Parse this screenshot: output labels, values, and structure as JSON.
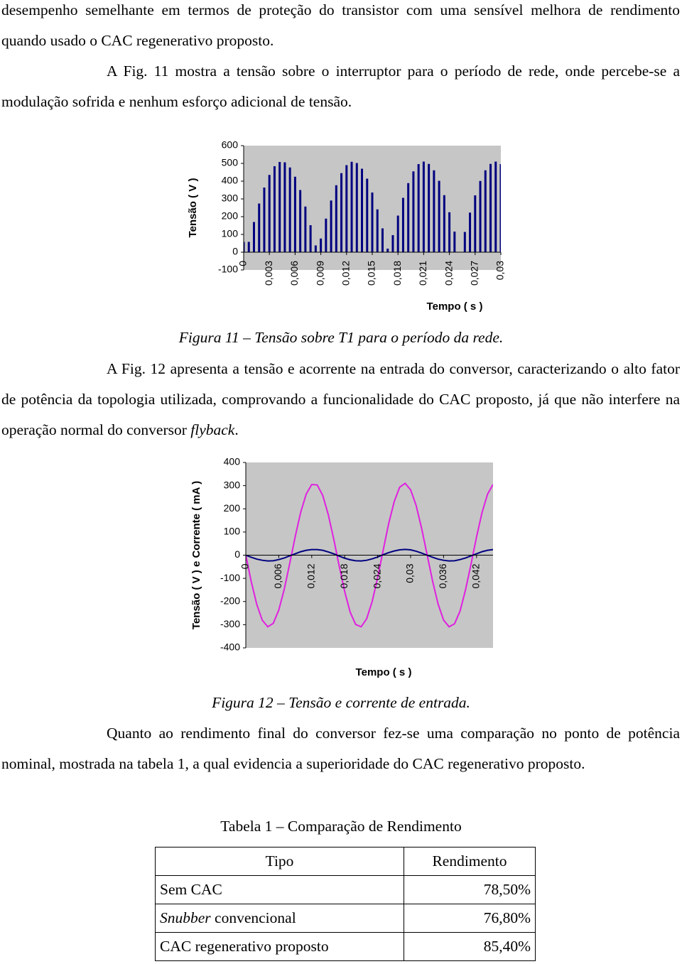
{
  "paragraph_1": "desempenho semelhante em termos de proteção do transistor com uma sensível melhora de rendimento quando usado o CAC regenerativo proposto.",
  "paragraph_2": "A Fig. 11 mostra a tensão sobre o interruptor para o período de rede, onde percebe-se a modulação sofrida e nenhum esforço adicional de tensão.",
  "figure_11": {
    "chart_data": {
      "type": "bar",
      "x_label": "Tempo ( s )",
      "y_label": "Tensão ( V )",
      "color": "#000080",
      "x": [
        0,
        0.0006,
        0.0012,
        0.0018,
        0.0024,
        0.003,
        0.0036,
        0.0042,
        0.0048,
        0.0054,
        0.006,
        0.0066,
        0.0072,
        0.0078,
        0.0084,
        0.009,
        0.0096,
        0.0102,
        0.0108,
        0.0114,
        0.012,
        0.0126,
        0.0132,
        0.0138,
        0.0144,
        0.015,
        0.0156,
        0.0162,
        0.0168,
        0.0174,
        0.018,
        0.0186,
        0.0192,
        0.0198,
        0.0204,
        0.021,
        0.0216,
        0.0222,
        0.0228,
        0.0234,
        0.024,
        0.0246,
        0.0252,
        0.0258,
        0.0264,
        0.027,
        0.0276,
        0.0282,
        0.0288,
        0.0294,
        0.03
      ],
      "values": [
        58,
        58,
        170,
        274,
        364,
        435,
        484,
        508,
        506,
        477,
        425,
        350,
        257,
        152,
        38,
        77,
        189,
        291,
        377,
        445,
        490,
        509,
        502,
        470,
        414,
        336,
        241,
        134,
        20,
        96,
        206,
        306,
        389,
        455,
        496,
        510,
        497,
        461,
        402,
        321,
        225,
        116,
        1,
        114,
        223,
        320,
        401,
        461,
        497,
        510,
        496
      ],
      "xlim": [
        0,
        0.03
      ],
      "xticks": [
        0,
        {
          "value": 0.003,
          "label": "0,003"
        },
        {
          "value": 0.006,
          "label": "0,006"
        },
        {
          "value": 0.009,
          "label": "0,009"
        },
        {
          "value": 0.012,
          "label": "0,012"
        },
        {
          "value": 0.015,
          "label": "0,015"
        },
        {
          "value": 0.018,
          "label": "0,018"
        },
        {
          "value": 0.021,
          "label": "0,021"
        },
        {
          "value": 0.024,
          "label": "0,024"
        },
        {
          "value": 0.027,
          "label": "0,027"
        },
        {
          "value": 0.03,
          "label": "0,03"
        }
      ],
      "ylim": [
        -100,
        600
      ],
      "yticks": [
        600,
        500,
        400,
        300,
        200,
        100,
        0,
        -100
      ]
    },
    "caption": "Figura 11 – Tensão sobre T1 para o período da rede."
  },
  "paragraph_3": {
    "text": "A Fig. 12 apresenta a tensão e acorrente na entrada do conversor, caracterizando o alto fator de potência da topologia utilizada, comprovando a funcionalidade do CAC proposto, já que não interfere na operação normal do conversor",
    "italic": "flyback",
    "end": "."
  },
  "figure_12": {
    "chart_data": {
      "type": "line",
      "x_label": "Tempo ( s )",
      "y_label": "Tensão ( V ) e Corrente ( mA )",
      "x": [
        0,
        0.001,
        0.002,
        0.003,
        0.004,
        0.005,
        0.006,
        0.007,
        0.008,
        0.009,
        0.01,
        0.011,
        0.012,
        0.013,
        0.014,
        0.015,
        0.016,
        0.017,
        0.018,
        0.019,
        0.02,
        0.021,
        0.022,
        0.023,
        0.024,
        0.025,
        0.026,
        0.027,
        0.028,
        0.029,
        0.03,
        0.031,
        0.032,
        0.033,
        0.034,
        0.035,
        0.036,
        0.037,
        0.038,
        0.039,
        0.04,
        0.041,
        0.042,
        0.043,
        0.044,
        0.045
      ],
      "series": [
        {
          "color": "#e020e0",
          "values": [
            0,
            -115,
            -213,
            -281,
            -309,
            -294,
            -237,
            -147,
            -35,
            81,
            186,
            264,
            305,
            303,
            258,
            176,
            70,
            -47,
            -157,
            -246,
            -299,
            -309,
            -274,
            -200,
            -97,
            21,
            136,
            230,
            293,
            310,
            282,
            215,
            116,
            2,
            -112,
            -211,
            -280,
            -309,
            -296,
            -241,
            -149,
            -38,
            79,
            184,
            263,
            305
          ]
        },
        {
          "color": "#000080",
          "values": [
            0,
            -9,
            -17,
            -22,
            -25,
            -24,
            -19,
            -12,
            -3,
            6,
            15,
            21,
            24,
            24,
            21,
            14,
            6,
            -4,
            -13,
            -20,
            -24,
            -25,
            -22,
            -16,
            -8,
            2,
            11,
            18,
            23,
            25,
            23,
            17,
            9,
            0,
            -9,
            -17,
            -22,
            -25,
            -24,
            -19,
            -12,
            -3,
            6,
            15,
            21,
            24
          ]
        }
      ],
      "xlim": [
        0,
        0.045
      ],
      "xticks": [
        0,
        {
          "value": 0.006,
          "label": "0,006"
        },
        {
          "value": 0.012,
          "label": "0,012"
        },
        {
          "value": 0.018,
          "label": "0,018"
        },
        {
          "value": 0.024,
          "label": "0,024"
        },
        {
          "value": 0.03,
          "label": "0,03"
        },
        {
          "value": 0.036,
          "label": "0,036"
        },
        {
          "value": 0.042,
          "label": "0,042"
        }
      ],
      "ylim": [
        -400,
        400
      ],
      "yticks": [
        400,
        300,
        200,
        100,
        0,
        -100,
        -200,
        -300,
        -400
      ]
    },
    "caption": "Figura 12 – Tensão e corrente de entrada."
  },
  "paragraph_4": "Quanto ao rendimento final do conversor fez-se uma comparação no ponto de potência nominal, mostrada na tabela 1, a qual evidencia a superioridade do CAC regenerativo proposto.",
  "table": {
    "title": "Tabela 1 – Comparação de Rendimento",
    "header": [
      "Tipo",
      "Rendimento"
    ],
    "rows": [
      [
        "Sem CAC",
        "78,50%"
      ],
      [
        {
          "italic": "Snubber",
          "text": "convencional"
        },
        "76,80%"
      ],
      [
        "CAC regenerativo proposto",
        "85,40%"
      ]
    ]
  }
}
